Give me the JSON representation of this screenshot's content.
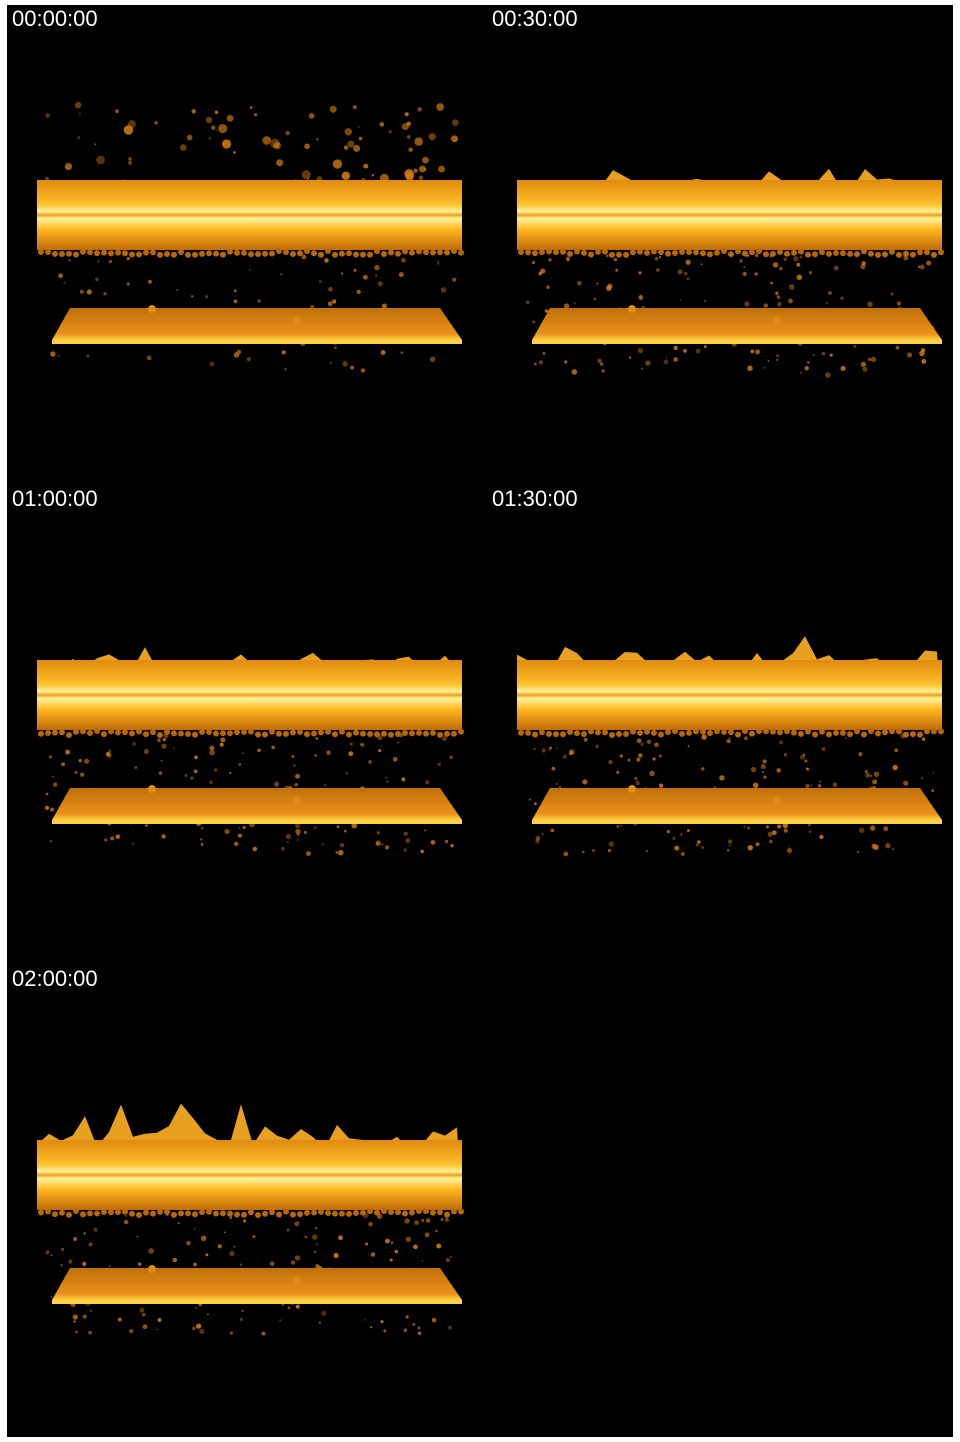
{
  "panels": [
    {
      "label": "00:00:00"
    },
    {
      "label": "00:30:00"
    },
    {
      "label": "01:00:00"
    },
    {
      "label": "01:30:00"
    },
    {
      "label": "02:00:00"
    }
  ]
}
